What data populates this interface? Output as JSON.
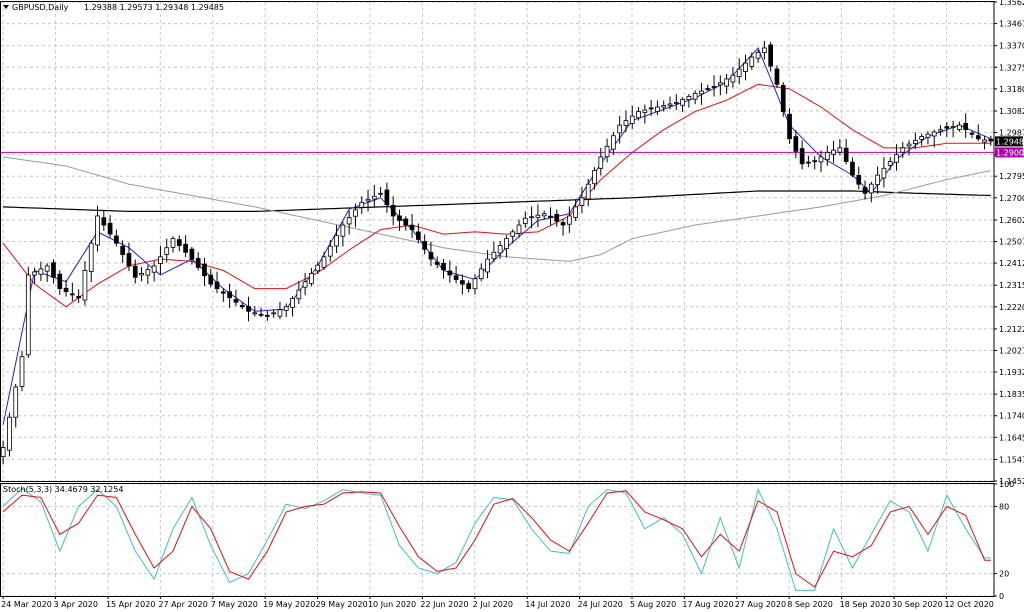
{
  "header": {
    "symbol": "GBPUSD,Daily",
    "ohlc": "1.29388 1.29573 1.29348 1.29485",
    "stoch_label": "Stoch(5,3,3) 34.4679 32.1254"
  },
  "colors": {
    "bull_candle": "#ffffff",
    "bear_candle": "#000000",
    "ma_blue": "#2222cc",
    "ma_red": "#e01010",
    "ma_gray": "#9a9a9a",
    "ma_black": "#000000",
    "hline": "#b000b0",
    "stoch_main": "#40c0c0",
    "stoch_signal": "#e01010",
    "grid": "#c8c8c8",
    "price_box_current": "#000000",
    "price_box_line": "#b000b0"
  },
  "chart_data": {
    "type": "candlestick",
    "symbol": "GBPUSD",
    "timeframe": "Daily",
    "ylim": [
      1.14525,
      1.35625
    ],
    "price_ticks": [
      "1.35625",
      "1.34675",
      "1.33700",
      "1.32750",
      "1.31800",
      "1.30825",
      "1.29875",
      "1.28900",
      "1.27950",
      "1.27000",
      "1.26025",
      "1.25075",
      "1.24125",
      "1.23150",
      "1.22200",
      "1.21225",
      "1.20275",
      "1.19325",
      "1.18350",
      "1.17400",
      "1.16450",
      "1.15475",
      "1.14525"
    ],
    "x_labels": [
      "24 Mar 2020",
      "3 Apr 2020",
      "15 Apr 2020",
      "27 Apr 2020",
      "7 May 2020",
      "19 May 2020",
      "29 May 2020",
      "10 Jun 2020",
      "22 Jun 2020",
      "2 Jul 2020",
      "14 Jul 2020",
      "24 Jul 2020",
      "5 Aug 2020",
      "17 Aug 2020",
      "27 Aug 2020",
      "8 Sep 2020",
      "18 Sep 2020",
      "30 Sep 2020",
      "12 Oct 2020"
    ],
    "current_price": "1.29485",
    "horizontal_line": {
      "price": 1.29,
      "label": "1.29000"
    },
    "close_anchors": [
      [
        0,
        1.16
      ],
      [
        3,
        1.2
      ],
      [
        4,
        1.236
      ],
      [
        7,
        1.24
      ],
      [
        9,
        1.23
      ],
      [
        12,
        1.226
      ],
      [
        15,
        1.262
      ],
      [
        18,
        1.25
      ],
      [
        21,
        1.235
      ],
      [
        24,
        1.24
      ],
      [
        27,
        1.252
      ],
      [
        30,
        1.243
      ],
      [
        33,
        1.232
      ],
      [
        36,
        1.226
      ],
      [
        39,
        1.22
      ],
      [
        42,
        1.218
      ],
      [
        45,
        1.222
      ],
      [
        48,
        1.233
      ],
      [
        51,
        1.244
      ],
      [
        54,
        1.258
      ],
      [
        57,
        1.268
      ],
      [
        60,
        1.272
      ],
      [
        62,
        1.262
      ],
      [
        65,
        1.256
      ],
      [
        68,
        1.243
      ],
      [
        71,
        1.236
      ],
      [
        74,
        1.23
      ],
      [
        77,
        1.243
      ],
      [
        80,
        1.252
      ],
      [
        83,
        1.261
      ],
      [
        86,
        1.263
      ],
      [
        89,
        1.258
      ],
      [
        92,
        1.27
      ],
      [
        95,
        1.288
      ],
      [
        98,
        1.302
      ],
      [
        101,
        1.308
      ],
      [
        104,
        1.31
      ],
      [
        107,
        1.312
      ],
      [
        110,
        1.316
      ],
      [
        113,
        1.319
      ],
      [
        116,
        1.324
      ],
      [
        119,
        1.332
      ],
      [
        121,
        1.336
      ],
      [
        123,
        1.32
      ],
      [
        125,
        1.296
      ],
      [
        127,
        1.285
      ],
      [
        129,
        1.286
      ],
      [
        131,
        1.29
      ],
      [
        133,
        1.292
      ],
      [
        135,
        1.28
      ],
      [
        137,
        1.272
      ],
      [
        139,
        1.28
      ],
      [
        141,
        1.286
      ],
      [
        143,
        1.292
      ],
      [
        146,
        1.297
      ],
      [
        149,
        1.3
      ],
      [
        152,
        1.302
      ],
      [
        155,
        1.296
      ],
      [
        157,
        1.295
      ]
    ],
    "ma_blue_anchors": [
      [
        0,
        1.17
      ],
      [
        5,
        1.238
      ],
      [
        10,
        1.233
      ],
      [
        15,
        1.255
      ],
      [
        20,
        1.248
      ],
      [
        25,
        1.236
      ],
      [
        30,
        1.243
      ],
      [
        35,
        1.23
      ],
      [
        40,
        1.22
      ],
      [
        45,
        1.221
      ],
      [
        50,
        1.24
      ],
      [
        55,
        1.265
      ],
      [
        60,
        1.27
      ],
      [
        65,
        1.256
      ],
      [
        70,
        1.238
      ],
      [
        75,
        1.234
      ],
      [
        80,
        1.248
      ],
      [
        85,
        1.26
      ],
      [
        90,
        1.263
      ],
      [
        95,
        1.285
      ],
      [
        100,
        1.304
      ],
      [
        105,
        1.309
      ],
      [
        110,
        1.314
      ],
      [
        115,
        1.321
      ],
      [
        120,
        1.336
      ],
      [
        125,
        1.302
      ],
      [
        130,
        1.288
      ],
      [
        135,
        1.28
      ],
      [
        138,
        1.272
      ],
      [
        142,
        1.287
      ],
      [
        147,
        1.297
      ],
      [
        152,
        1.302
      ],
      [
        157,
        1.296
      ]
    ],
    "ma_red_anchors": [
      [
        0,
        1.25
      ],
      [
        5,
        1.232
      ],
      [
        10,
        1.222
      ],
      [
        15,
        1.232
      ],
      [
        20,
        1.24
      ],
      [
        25,
        1.243
      ],
      [
        30,
        1.242
      ],
      [
        35,
        1.238
      ],
      [
        40,
        1.23
      ],
      [
        45,
        1.23
      ],
      [
        50,
        1.237
      ],
      [
        55,
        1.247
      ],
      [
        60,
        1.256
      ],
      [
        65,
        1.258
      ],
      [
        70,
        1.254
      ],
      [
        75,
        1.255
      ],
      [
        80,
        1.254
      ],
      [
        85,
        1.255
      ],
      [
        90,
        1.262
      ],
      [
        95,
        1.278
      ],
      [
        100,
        1.29
      ],
      [
        105,
        1.3
      ],
      [
        110,
        1.308
      ],
      [
        115,
        1.313
      ],
      [
        120,
        1.32
      ],
      [
        125,
        1.318
      ],
      [
        130,
        1.31
      ],
      [
        135,
        1.3
      ],
      [
        140,
        1.292
      ],
      [
        145,
        1.292
      ],
      [
        150,
        1.294
      ],
      [
        157,
        1.294
      ]
    ],
    "ma_gray_anchors": [
      [
        0,
        1.288
      ],
      [
        10,
        1.284
      ],
      [
        20,
        1.276
      ],
      [
        30,
        1.271
      ],
      [
        40,
        1.266
      ],
      [
        50,
        1.26
      ],
      [
        60,
        1.254
      ],
      [
        70,
        1.248
      ],
      [
        80,
        1.244
      ],
      [
        90,
        1.242
      ],
      [
        95,
        1.245
      ],
      [
        100,
        1.252
      ],
      [
        110,
        1.258
      ],
      [
        120,
        1.262
      ],
      [
        130,
        1.266
      ],
      [
        140,
        1.271
      ],
      [
        150,
        1.278
      ],
      [
        157,
        1.282
      ]
    ],
    "ma_black_anchors": [
      [
        0,
        1.266
      ],
      [
        20,
        1.264
      ],
      [
        40,
        1.264
      ],
      [
        60,
        1.266
      ],
      [
        80,
        1.268
      ],
      [
        100,
        1.27
      ],
      [
        120,
        1.273
      ],
      [
        135,
        1.273
      ],
      [
        145,
        1.272
      ],
      [
        157,
        1.271
      ]
    ],
    "stochastic": {
      "label": "Stoch(5,3,3) 34.4679 32.1254",
      "ylim": [
        0,
        100
      ],
      "ticks": [
        "100",
        "80",
        "20",
        "0"
      ],
      "k_anchors": [
        [
          0,
          80
        ],
        [
          3,
          96
        ],
        [
          6,
          84
        ],
        [
          9,
          40
        ],
        [
          12,
          80
        ],
        [
          15,
          95
        ],
        [
          18,
          80
        ],
        [
          21,
          40
        ],
        [
          24,
          15
        ],
        [
          27,
          60
        ],
        [
          30,
          88
        ],
        [
          33,
          45
        ],
        [
          36,
          12
        ],
        [
          39,
          20
        ],
        [
          42,
          50
        ],
        [
          45,
          82
        ],
        [
          48,
          78
        ],
        [
          51,
          85
        ],
        [
          54,
          95
        ],
        [
          57,
          92
        ],
        [
          60,
          90
        ],
        [
          63,
          45
        ],
        [
          66,
          25
        ],
        [
          69,
          20
        ],
        [
          72,
          30
        ],
        [
          75,
          65
        ],
        [
          78,
          88
        ],
        [
          81,
          86
        ],
        [
          84,
          60
        ],
        [
          87,
          40
        ],
        [
          90,
          38
        ],
        [
          93,
          80
        ],
        [
          96,
          95
        ],
        [
          99,
          92
        ],
        [
          102,
          60
        ],
        [
          105,
          70
        ],
        [
          108,
          55
        ],
        [
          111,
          20
        ],
        [
          114,
          70
        ],
        [
          117,
          25
        ],
        [
          120,
          95
        ],
        [
          123,
          60
        ],
        [
          126,
          5
        ],
        [
          129,
          5
        ],
        [
          132,
          60
        ],
        [
          135,
          25
        ],
        [
          138,
          55
        ],
        [
          141,
          85
        ],
        [
          144,
          75
        ],
        [
          147,
          40
        ],
        [
          150,
          90
        ],
        [
          153,
          60
        ],
        [
          156,
          34
        ]
      ],
      "d_anchors": [
        [
          0,
          75
        ],
        [
          3,
          90
        ],
        [
          6,
          88
        ],
        [
          9,
          55
        ],
        [
          12,
          65
        ],
        [
          15,
          90
        ],
        [
          18,
          88
        ],
        [
          21,
          55
        ],
        [
          24,
          25
        ],
        [
          27,
          40
        ],
        [
          30,
          80
        ],
        [
          33,
          60
        ],
        [
          36,
          22
        ],
        [
          39,
          15
        ],
        [
          42,
          40
        ],
        [
          45,
          75
        ],
        [
          48,
          80
        ],
        [
          51,
          82
        ],
        [
          54,
          92
        ],
        [
          57,
          93
        ],
        [
          60,
          92
        ],
        [
          63,
          62
        ],
        [
          66,
          35
        ],
        [
          69,
          22
        ],
        [
          72,
          25
        ],
        [
          75,
          50
        ],
        [
          78,
          82
        ],
        [
          81,
          87
        ],
        [
          84,
          70
        ],
        [
          87,
          50
        ],
        [
          90,
          40
        ],
        [
          93,
          65
        ],
        [
          96,
          92
        ],
        [
          99,
          94
        ],
        [
          102,
          75
        ],
        [
          105,
          68
        ],
        [
          108,
          60
        ],
        [
          111,
          35
        ],
        [
          114,
          55
        ],
        [
          117,
          40
        ],
        [
          120,
          85
        ],
        [
          123,
          75
        ],
        [
          126,
          20
        ],
        [
          129,
          8
        ],
        [
          132,
          40
        ],
        [
          135,
          35
        ],
        [
          138,
          45
        ],
        [
          141,
          75
        ],
        [
          144,
          80
        ],
        [
          147,
          55
        ],
        [
          150,
          80
        ],
        [
          153,
          72
        ],
        [
          156,
          32
        ]
      ]
    }
  }
}
